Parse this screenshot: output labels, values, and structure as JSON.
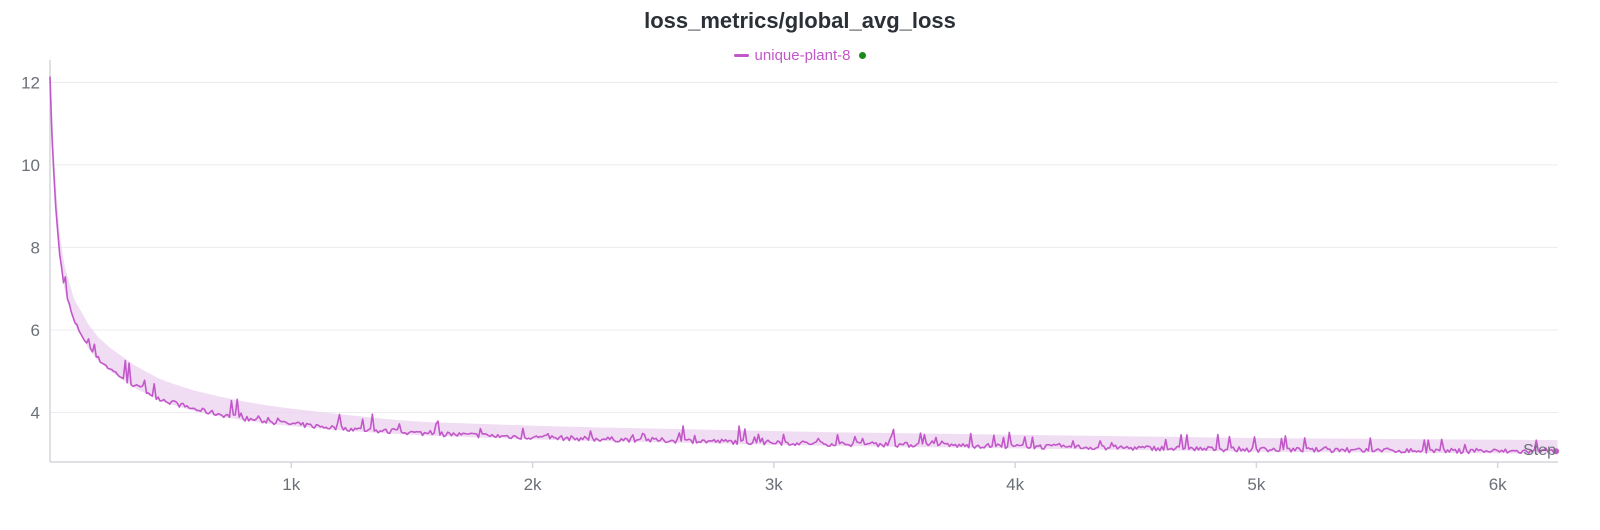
{
  "chart_data": {
    "type": "line",
    "title": "loss_metrics/global_avg_loss",
    "xlabel": "Step",
    "ylabel": "",
    "xlim": [
      0,
      6250
    ],
    "ylim": [
      2.8,
      12.3
    ],
    "x_ticks": [
      1000,
      2000,
      3000,
      4000,
      5000,
      6000
    ],
    "x_tick_labels": [
      "1k",
      "2k",
      "3k",
      "4k",
      "5k",
      "6k"
    ],
    "y_ticks": [
      4,
      6,
      8,
      10,
      12
    ],
    "y_tick_labels": [
      "4",
      "6",
      "8",
      "10",
      "12"
    ],
    "grid": true,
    "legend_position": "top-center",
    "run_status": "running",
    "colors": {
      "line": "#c257c9",
      "band": "#ecd3f0",
      "status_dot": "#1a8a1a",
      "grid": "#ebecef",
      "axis": "#d4d6da"
    },
    "series": [
      {
        "name": "unique-plant-8",
        "x": [
          0,
          10,
          20,
          30,
          40,
          60,
          80,
          100,
          130,
          160,
          200,
          250,
          300,
          350,
          400,
          450,
          500,
          600,
          700,
          800,
          900,
          1000,
          1200,
          1400,
          1600,
          1800,
          2000,
          2250,
          2500,
          2750,
          3000,
          3250,
          3500,
          3750,
          4000,
          4250,
          4500,
          4750,
          5000,
          5250,
          5500,
          5750,
          6000,
          6250
        ],
        "y": [
          12.2,
          10.4,
          9.3,
          8.5,
          7.8,
          7.0,
          6.6,
          6.2,
          5.9,
          5.6,
          5.3,
          5.05,
          4.85,
          4.65,
          4.5,
          4.35,
          4.25,
          4.08,
          3.96,
          3.86,
          3.78,
          3.72,
          3.62,
          3.54,
          3.48,
          3.44,
          3.4,
          3.36,
          3.33,
          3.3,
          3.27,
          3.24,
          3.22,
          3.2,
          3.18,
          3.16,
          3.14,
          3.12,
          3.1,
          3.09,
          3.08,
          3.07,
          3.06,
          3.05
        ]
      }
    ]
  }
}
